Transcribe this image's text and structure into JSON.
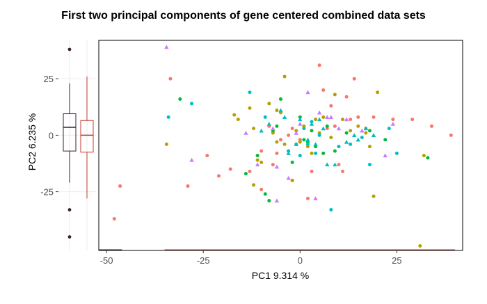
{
  "chart_data": {
    "type": "scatter",
    "title": "First two principal components of gene centered combined data sets",
    "xlabel": "PC1 9.314 %",
    "ylabel": "PC2 6.235 %",
    "xlim": [
      -52,
      42
    ],
    "ylim": [
      -51,
      42
    ],
    "x_ticks": [
      -50,
      -25,
      0,
      25
    ],
    "x_tick_labels": [
      "-50",
      "-25",
      "0",
      "25"
    ],
    "y_ticks": [
      25,
      0,
      -25
    ],
    "y_tick_labels": [
      "25",
      "0",
      "-25"
    ],
    "grid": true,
    "legend": "none",
    "series": [
      {
        "color": "#F8766D",
        "shape": "circle",
        "points": [
          [
            -48,
            -37
          ],
          [
            -46.5,
            -22.5
          ],
          [
            -33.5,
            25
          ],
          [
            -29,
            -22.5
          ],
          [
            -24,
            -9
          ],
          [
            -21,
            -18
          ],
          [
            -18,
            -15
          ],
          [
            -13,
            -16
          ],
          [
            -10,
            -24
          ],
          [
            -10,
            -7
          ],
          [
            5,
            31
          ],
          [
            6,
            20
          ],
          [
            8,
            13
          ],
          [
            9,
            4
          ],
          [
            11,
            -16
          ],
          [
            12,
            17
          ],
          [
            13,
            7
          ],
          [
            14,
            25
          ],
          [
            15,
            8
          ],
          [
            17,
            3
          ],
          [
            19,
            8
          ],
          [
            24,
            7
          ],
          [
            29,
            7
          ],
          [
            34,
            4
          ],
          [
            39,
            0
          ],
          [
            -7,
            -13
          ],
          [
            -2,
            3
          ],
          [
            0,
            -2
          ],
          [
            3,
            -16
          ],
          [
            2,
            -28
          ],
          [
            -2,
            -20
          ],
          [
            -5,
            -2
          ],
          [
            -8,
            4
          ],
          [
            7,
            3
          ],
          [
            10,
            -13
          ],
          [
            -3,
            0
          ],
          [
            -6,
            -8
          ]
        ]
      },
      {
        "color": "#B79F00",
        "shape": "circle",
        "points": [
          [
            -34.5,
            -4
          ],
          [
            -17,
            9
          ],
          [
            -16,
            7
          ],
          [
            -13,
            12
          ],
          [
            -12,
            3
          ],
          [
            -11,
            -11
          ],
          [
            -10,
            -12
          ],
          [
            -8,
            14
          ],
          [
            -6,
            11
          ],
          [
            -6,
            -3
          ],
          [
            -5,
            10
          ],
          [
            -4,
            26
          ],
          [
            -3,
            -7
          ],
          [
            -2,
            -20
          ],
          [
            -1,
            2
          ],
          [
            1,
            4
          ],
          [
            2,
            -5
          ],
          [
            3,
            -8
          ],
          [
            4,
            7
          ],
          [
            5,
            1
          ],
          [
            8,
            -1
          ],
          [
            9,
            18
          ],
          [
            11,
            7
          ],
          [
            15,
            4
          ],
          [
            17,
            1
          ],
          [
            18,
            -5
          ],
          [
            19,
            -27
          ],
          [
            20,
            19
          ],
          [
            31,
            -49
          ],
          [
            32,
            -9
          ],
          [
            -12,
            -22
          ],
          [
            -4,
            -4
          ],
          [
            -7,
            1
          ],
          [
            6,
            8
          ],
          [
            13,
            2
          ],
          [
            0,
            -3
          ]
        ]
      },
      {
        "color": "#00BA38",
        "shape": "circle",
        "points": [
          [
            -31,
            16
          ],
          [
            -11,
            -9
          ],
          [
            -9,
            -26
          ],
          [
            -8,
            -29
          ],
          [
            -6,
            4
          ],
          [
            -5,
            16
          ],
          [
            -2,
            -12
          ],
          [
            0,
            8
          ],
          [
            1,
            -2
          ],
          [
            2,
            -3
          ],
          [
            3,
            2
          ],
          [
            6,
            -8
          ],
          [
            7,
            4
          ],
          [
            9,
            -7
          ],
          [
            12,
            1
          ],
          [
            18,
            2
          ],
          [
            22,
            -2
          ],
          [
            33,
            -10
          ],
          [
            -14,
            -17
          ],
          [
            -7,
            2
          ],
          [
            4,
            -5
          ]
        ]
      },
      {
        "color": "#00BFC4",
        "shape": "circle",
        "points": [
          [
            -34,
            8
          ],
          [
            -28,
            14
          ],
          [
            -13,
            19
          ],
          [
            -3,
            -7
          ],
          [
            -1,
            -4
          ],
          [
            0,
            -9
          ],
          [
            1,
            3
          ],
          [
            2,
            -4
          ],
          [
            4,
            -8
          ],
          [
            5,
            0
          ],
          [
            8,
            -33
          ],
          [
            10,
            -5
          ],
          [
            16,
            -1
          ],
          [
            18,
            -13
          ],
          [
            23,
            3
          ],
          [
            25,
            -8
          ],
          [
            -9,
            8
          ],
          [
            3,
            6
          ],
          [
            13,
            -4
          ]
        ]
      },
      {
        "color": "#00BFC4",
        "shape": "triangle",
        "points": [
          [
            -8,
            5
          ],
          [
            -5,
            11
          ],
          [
            -4,
            8
          ],
          [
            -3,
            -8
          ],
          [
            -1,
            -4
          ],
          [
            0,
            7
          ],
          [
            2,
            -2
          ],
          [
            3,
            5
          ],
          [
            5,
            7
          ],
          [
            7,
            -13
          ],
          [
            9,
            -13
          ],
          [
            12,
            -3
          ],
          [
            14,
            0
          ],
          [
            17,
            3
          ],
          [
            19,
            0
          ],
          [
            -10,
            2
          ],
          [
            4,
            -4
          ],
          [
            6,
            3
          ],
          [
            15,
            -2
          ]
        ]
      },
      {
        "color": "#C77CFF",
        "shape": "triangle",
        "points": [
          [
            -34.5,
            39
          ],
          [
            -28,
            -11
          ],
          [
            -14,
            1
          ],
          [
            -7,
            3
          ],
          [
            -6,
            -14
          ],
          [
            -3,
            -19
          ],
          [
            -1,
            1
          ],
          [
            0,
            5
          ],
          [
            2,
            19
          ],
          [
            4,
            -28
          ],
          [
            5,
            10
          ],
          [
            7,
            8
          ],
          [
            8,
            8
          ],
          [
            12,
            7
          ],
          [
            16,
            2
          ],
          [
            22,
            -9
          ],
          [
            -6,
            -29
          ],
          [
            -11,
            -13
          ],
          [
            10,
            3
          ],
          [
            24,
            5
          ]
        ]
      }
    ],
    "marginal_boxplots": [
      {
        "color": "#3B1F36",
        "min": -21,
        "q1": -7,
        "median": 3.5,
        "q3": 9.5,
        "max": 23,
        "outliers": [
          38,
          -33,
          -45
        ]
      },
      {
        "color": "#C0392B",
        "min": -28,
        "q1": -7.5,
        "median": 0,
        "q3": 6.5,
        "max": 26,
        "outliers": []
      }
    ],
    "bottom_lines": [
      {
        "color": "#3B1F36",
        "x_from": -52,
        "x_to": -46
      },
      {
        "color": "#C0392B",
        "x_from": -35,
        "x_to": 40
      }
    ]
  }
}
